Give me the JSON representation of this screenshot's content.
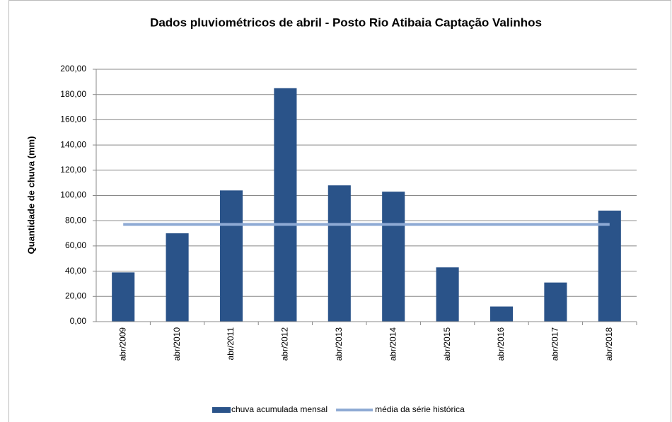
{
  "chart_data": {
    "type": "bar",
    "title": "Dados pluviométricos de abril - Posto Rio Atibaia Captação Valinhos",
    "y_label": "Quantidade de chuva (mm)",
    "categories": [
      "abr/2009",
      "abr/2010",
      "abr/2011",
      "abr/2012",
      "abr/2013",
      "abr/2014",
      "abr/2015",
      "abr/2016",
      "abr/2017",
      "abr/2018"
    ],
    "series": [
      {
        "name": "chuva acumulada mensal",
        "type": "bar",
        "color": "#2a5389",
        "values": [
          39,
          70,
          104,
          185,
          108,
          103,
          43,
          12,
          31,
          88
        ]
      },
      {
        "name": "média da série histórica",
        "type": "line",
        "color": "#8eaad4",
        "values": [
          77,
          77,
          77,
          77,
          77,
          77,
          77,
          77,
          77,
          77
        ]
      }
    ],
    "ylim": [
      0,
      200
    ],
    "yticks": [
      {
        "value": 0,
        "label": "0,00"
      },
      {
        "value": 20,
        "label": "20,00"
      },
      {
        "value": 40,
        "label": "40,00"
      },
      {
        "value": 60,
        "label": "60,00"
      },
      {
        "value": 80,
        "label": "80,00"
      },
      {
        "value": 100,
        "label": "100,00"
      },
      {
        "value": 120,
        "label": "120,00"
      },
      {
        "value": 140,
        "label": "140,00"
      },
      {
        "value": 160,
        "label": "160,00"
      },
      {
        "value": 180,
        "label": "180,00"
      },
      {
        "value": 200,
        "label": "200,00"
      }
    ],
    "grid": true,
    "legend": "bottom"
  }
}
